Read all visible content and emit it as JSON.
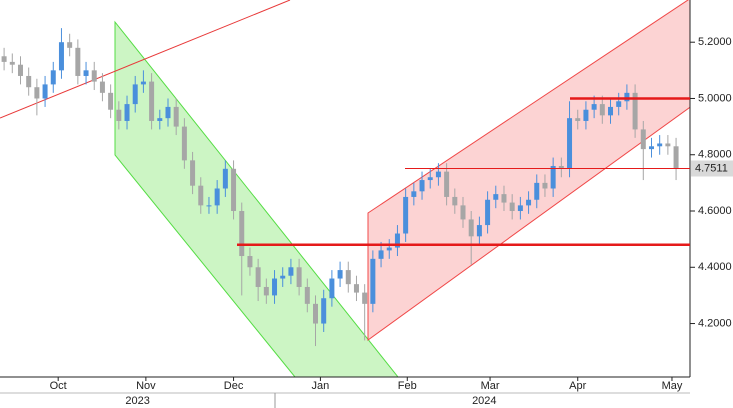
{
  "chart_data": {
    "type": "candlestick",
    "x": [
      0,
      1,
      2,
      3,
      4,
      5,
      6,
      7,
      8,
      9,
      10,
      11,
      12,
      13,
      14,
      15,
      16,
      17,
      18,
      19,
      20,
      21,
      22,
      23,
      24,
      25,
      26,
      27,
      28,
      29,
      30,
      31,
      32,
      33,
      34,
      35,
      36,
      37,
      38,
      39,
      40,
      41,
      42,
      43,
      44,
      45,
      46,
      47,
      48,
      49,
      50,
      51,
      52,
      53,
      54,
      55,
      56,
      57,
      58,
      59,
      60,
      61,
      62,
      63,
      64,
      65,
      66,
      67,
      68,
      69,
      70,
      71,
      72,
      73,
      74,
      75,
      76,
      77,
      78,
      79,
      80,
      81,
      82
    ],
    "open": [
      5.15,
      5.13,
      5.12,
      5.08,
      5.04,
      5.0,
      5.05,
      5.1,
      5.2,
      5.18,
      5.08,
      5.1,
      5.06,
      5.02,
      4.96,
      4.92,
      4.98,
      5.05,
      5.06,
      4.92,
      4.93,
      4.97,
      4.9,
      4.78,
      4.69,
      4.62,
      4.62,
      4.68,
      4.75,
      4.6,
      4.44,
      4.4,
      4.33,
      4.3,
      4.36,
      4.37,
      4.4,
      4.33,
      4.27,
      4.2,
      4.29,
      4.36,
      4.39,
      4.34,
      4.31,
      4.27,
      4.43,
      4.46,
      4.47,
      4.52,
      4.65,
      4.67,
      4.71,
      4.72,
      4.74,
      4.65,
      4.62,
      4.57,
      4.51,
      4.55,
      4.64,
      4.66,
      4.63,
      4.6,
      4.62,
      4.64,
      4.7,
      4.68,
      4.76,
      4.75,
      4.93,
      4.92,
      4.96,
      4.98,
      4.94,
      4.97,
      4.99,
      5.02,
      4.89,
      4.82,
      4.83,
      4.84,
      4.83
    ],
    "high": [
      5.18,
      5.16,
      5.15,
      5.11,
      5.07,
      5.08,
      5.13,
      5.25,
      5.23,
      5.21,
      5.13,
      5.13,
      5.09,
      5.05,
      4.99,
      5.01,
      5.08,
      5.1,
      5.09,
      4.96,
      5.0,
      5.0,
      4.93,
      4.81,
      4.72,
      4.65,
      4.71,
      4.78,
      4.78,
      4.63,
      4.47,
      4.43,
      4.36,
      4.39,
      4.4,
      4.43,
      4.43,
      4.36,
      4.3,
      4.32,
      4.39,
      4.42,
      4.42,
      4.37,
      4.34,
      4.46,
      4.49,
      4.5,
      4.55,
      4.68,
      4.7,
      4.74,
      4.75,
      4.77,
      4.77,
      4.68,
      4.65,
      4.6,
      4.58,
      4.67,
      4.69,
      4.69,
      4.66,
      4.65,
      4.67,
      4.73,
      4.73,
      4.79,
      4.79,
      4.99,
      4.96,
      4.99,
      5.01,
      5.01,
      5.0,
      5.02,
      5.05,
      5.05,
      4.92,
      4.86,
      4.87,
      4.87,
      4.86
    ],
    "low": [
      5.1,
      5.09,
      5.05,
      5.01,
      4.94,
      4.97,
      5.02,
      5.07,
      5.15,
      5.05,
      5.05,
      5.03,
      4.99,
      4.93,
      4.89,
      4.89,
      4.95,
      5.02,
      4.89,
      4.89,
      4.9,
      4.87,
      4.75,
      4.66,
      4.59,
      4.59,
      4.59,
      4.65,
      4.57,
      4.3,
      4.37,
      4.28,
      4.27,
      4.27,
      4.33,
      4.34,
      4.3,
      4.24,
      4.12,
      4.17,
      4.26,
      4.33,
      4.31,
      4.28,
      4.14,
      4.24,
      4.4,
      4.43,
      4.44,
      4.49,
      4.62,
      4.64,
      4.68,
      4.69,
      4.62,
      4.59,
      4.54,
      4.41,
      4.48,
      4.52,
      4.61,
      4.6,
      4.57,
      4.57,
      4.59,
      4.61,
      4.65,
      4.65,
      4.72,
      4.72,
      4.89,
      4.89,
      4.93,
      4.91,
      4.91,
      4.94,
      4.96,
      4.86,
      4.71,
      4.79,
      4.8,
      4.8,
      4.71
    ],
    "close": [
      5.13,
      5.12,
      5.08,
      5.04,
      5.0,
      5.05,
      5.1,
      5.2,
      5.18,
      5.08,
      5.1,
      5.06,
      5.02,
      4.96,
      4.92,
      4.98,
      5.05,
      5.06,
      4.92,
      4.93,
      4.97,
      4.9,
      4.78,
      4.69,
      4.62,
      4.62,
      4.68,
      4.75,
      4.6,
      4.44,
      4.4,
      4.33,
      4.3,
      4.36,
      4.37,
      4.4,
      4.33,
      4.27,
      4.2,
      4.29,
      4.36,
      4.39,
      4.34,
      4.31,
      4.27,
      4.43,
      4.46,
      4.47,
      4.52,
      4.65,
      4.67,
      4.71,
      4.72,
      4.74,
      4.65,
      4.62,
      4.57,
      4.51,
      4.55,
      4.64,
      4.66,
      4.63,
      4.6,
      4.62,
      4.64,
      4.7,
      4.68,
      4.76,
      4.75,
      4.93,
      4.92,
      4.96,
      4.98,
      4.94,
      4.97,
      4.99,
      5.02,
      4.89,
      4.82,
      4.83,
      4.84,
      4.83,
      4.75
    ],
    "up_color": "#4a8fdc",
    "down_color": "#a6a6a6",
    "xlim": [
      -0.5,
      83.7
    ],
    "xticks": [
      {
        "value": 6.6,
        "label": "Oct"
      },
      {
        "value": 17.3,
        "label": "Nov"
      },
      {
        "value": 28.0,
        "label": "Dec"
      },
      {
        "value": 38.6,
        "label": "Jan"
      },
      {
        "value": 49.2,
        "label": "Feb"
      },
      {
        "value": 59.3,
        "label": "Mar"
      },
      {
        "value": 70.0,
        "label": "Apr"
      },
      {
        "value": 81.5,
        "label": "May"
      }
    ],
    "year_ticks": [
      {
        "value": 16.3,
        "label": "2023"
      },
      {
        "value": 58.6,
        "label": "2024"
      }
    ],
    "ylim": [
      4.01,
      5.35
    ],
    "yticks": [
      {
        "value": 4.2,
        "label": "4.2000"
      },
      {
        "value": 4.4,
        "label": "4.4000"
      },
      {
        "value": 4.6,
        "label": "4.6000"
      },
      {
        "value": 4.8,
        "label": "4.8000"
      },
      {
        "value": 5.0,
        "label": "5.0000"
      },
      {
        "value": 5.2,
        "label": "5.2000"
      }
    ],
    "levels": [
      5.0,
      4.48
    ],
    "last_price": 4.7511
  }
}
